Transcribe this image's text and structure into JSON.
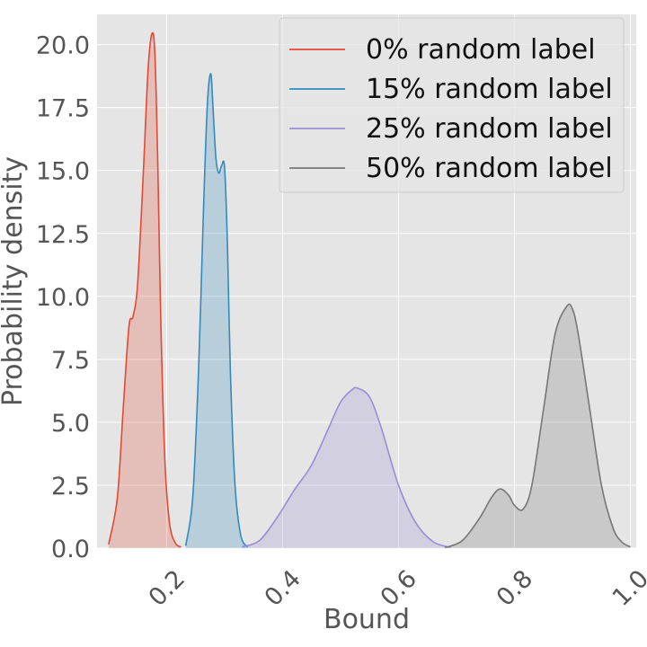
{
  "chart_data": {
    "type": "area",
    "xlabel": "Bound",
    "ylabel": "Probability density",
    "xlim": [
      0.08,
      1.01
    ],
    "ylim": [
      0,
      21.2
    ],
    "xticks": [
      0.2,
      0.4,
      0.6,
      0.8,
      1.0
    ],
    "xtick_labels": [
      "0.2",
      "0.4",
      "0.6",
      "0.8",
      "1.0"
    ],
    "yticks": [
      0,
      2.5,
      5,
      7.5,
      10,
      12.5,
      15,
      17.5,
      20
    ],
    "ytick_labels": [
      "0.0",
      "2.5",
      "5.0",
      "7.5",
      "10.0",
      "12.5",
      "15.0",
      "17.5",
      "20.0"
    ],
    "grid": true,
    "legend_position": "top-right",
    "series": [
      {
        "name": "0% random label",
        "color": "#E24A33",
        "x": [
          0.1,
          0.115,
          0.125,
          0.135,
          0.142,
          0.15,
          0.16,
          0.168,
          0.175,
          0.18,
          0.185,
          0.19,
          0.197,
          0.205,
          0.215,
          0.225
        ],
        "y": [
          0.15,
          2.0,
          5.5,
          8.8,
          9.2,
          10.5,
          15.0,
          19.0,
          20.45,
          19.5,
          15.0,
          9.0,
          3.5,
          1.0,
          0.2,
          0.05
        ]
      },
      {
        "name": "15% random label",
        "color": "#348ABD",
        "x": [
          0.233,
          0.245,
          0.255,
          0.263,
          0.27,
          0.276,
          0.28,
          0.285,
          0.29,
          0.295,
          0.3,
          0.305,
          0.31,
          0.318,
          0.328,
          0.34
        ],
        "y": [
          0.1,
          2.0,
          7.0,
          13.0,
          17.5,
          18.85,
          17.5,
          15.5,
          14.9,
          15.2,
          15.1,
          12.0,
          7.0,
          2.5,
          0.5,
          0.05
        ]
      },
      {
        "name": "25% random label",
        "color": "#988ED5",
        "x": [
          0.33,
          0.36,
          0.39,
          0.42,
          0.45,
          0.48,
          0.5,
          0.52,
          0.53,
          0.55,
          0.57,
          0.6,
          0.63,
          0.66,
          0.69
        ],
        "y": [
          0.05,
          0.3,
          1.2,
          2.3,
          3.3,
          4.8,
          5.8,
          6.3,
          6.35,
          6.0,
          4.8,
          2.5,
          1.0,
          0.25,
          0.03
        ]
      },
      {
        "name": "50% random label",
        "color": "#777777",
        "x": [
          0.68,
          0.71,
          0.74,
          0.76,
          0.775,
          0.79,
          0.8,
          0.815,
          0.83,
          0.85,
          0.87,
          0.89,
          0.9,
          0.91,
          0.93,
          0.95,
          0.97,
          0.985,
          1.0
        ],
        "y": [
          0.02,
          0.3,
          1.2,
          2.0,
          2.35,
          2.1,
          1.7,
          1.55,
          2.5,
          5.5,
          8.5,
          9.6,
          9.5,
          8.5,
          5.5,
          2.5,
          0.8,
          0.25,
          0.05
        ]
      }
    ]
  }
}
